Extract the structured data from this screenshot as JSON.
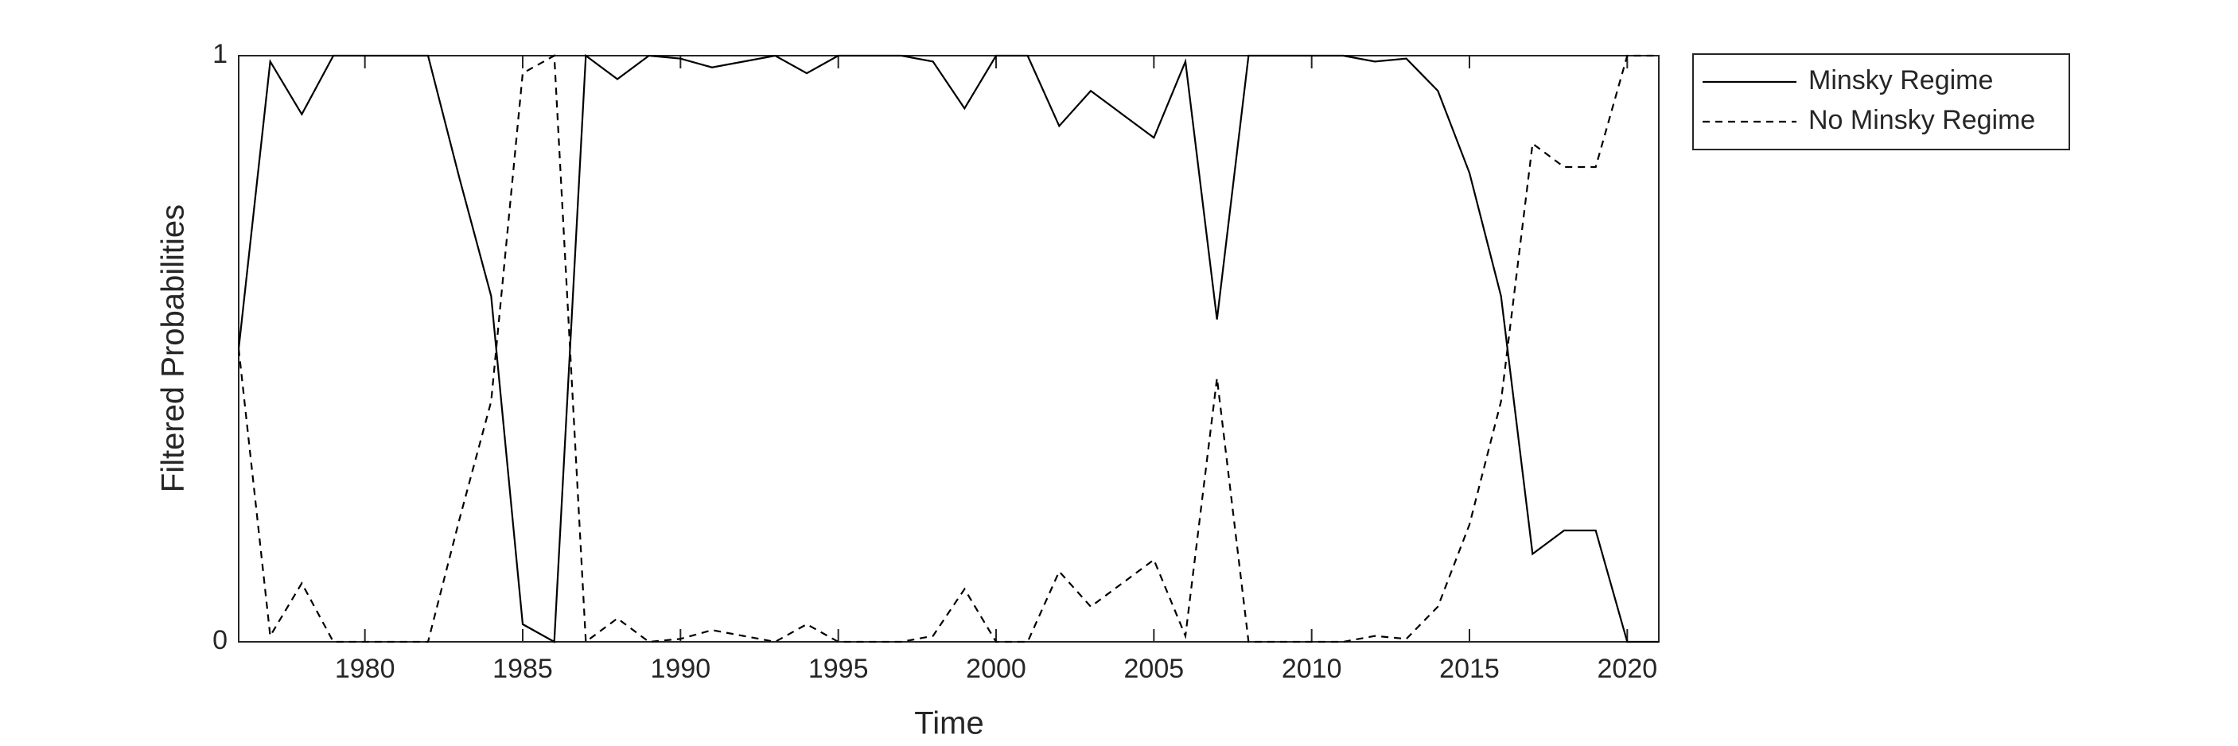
{
  "chart_data": {
    "type": "line",
    "x_label": "Time",
    "y_label": "Filtered Probabilities",
    "x": [
      1976,
      1977,
      1978,
      1979,
      1980,
      1981,
      1982,
      1983,
      1984,
      1985,
      1986,
      1987,
      1988,
      1989,
      1990,
      1991,
      1992,
      1993,
      1994,
      1995,
      1996,
      1997,
      1998,
      1999,
      2000,
      2001,
      2002,
      2003,
      2004,
      2005,
      2006,
      2007,
      2008,
      2009,
      2010,
      2011,
      2012,
      2013,
      2014,
      2015,
      2016,
      2017,
      2018,
      2019,
      2020,
      2021
    ],
    "series": [
      {
        "name": "Minsky Regime",
        "color": "#000000",
        "line_style": "solid",
        "values": [
          0.5,
          0.99,
          0.9,
          1,
          1,
          1,
          1,
          0.79,
          0.59,
          0.03,
          0,
          1,
          0.96,
          1,
          0.995,
          0.98,
          0.99,
          1,
          0.97,
          1,
          1,
          1,
          0.99,
          0.91,
          1,
          1,
          0.88,
          0.94,
          0.9,
          0.86,
          0.99,
          0.55,
          1,
          1,
          1,
          1,
          0.99,
          0.995,
          0.94,
          0.8,
          0.59,
          0.15,
          0.19,
          0.19,
          0,
          0
        ]
      },
      {
        "name": "No Minsky Regime",
        "color": "#000000",
        "line_style": "dashed",
        "values": [
          0.5,
          0.01,
          0.1,
          0,
          0,
          0,
          0,
          0.21,
          0.41,
          0.97,
          1,
          0,
          0.04,
          0,
          0.005,
          0.02,
          0.01,
          0,
          0.03,
          0,
          0,
          0,
          0.01,
          0.09,
          0,
          0,
          0.12,
          0.06,
          0.1,
          0.14,
          0.01,
          0.45,
          0,
          0,
          0,
          0,
          0.01,
          0.005,
          0.06,
          0.2,
          0.41,
          0.85,
          0.81,
          0.81,
          1,
          1
        ]
      }
    ],
    "xlim": [
      1976,
      2021
    ],
    "xticks": [
      1980,
      1985,
      1990,
      1995,
      2000,
      2005,
      2010,
      2015,
      2020
    ],
    "ylim": [
      0,
      1
    ],
    "yticks": [
      0,
      1
    ],
    "grid": false,
    "legend_position": "outside-upper-right"
  }
}
